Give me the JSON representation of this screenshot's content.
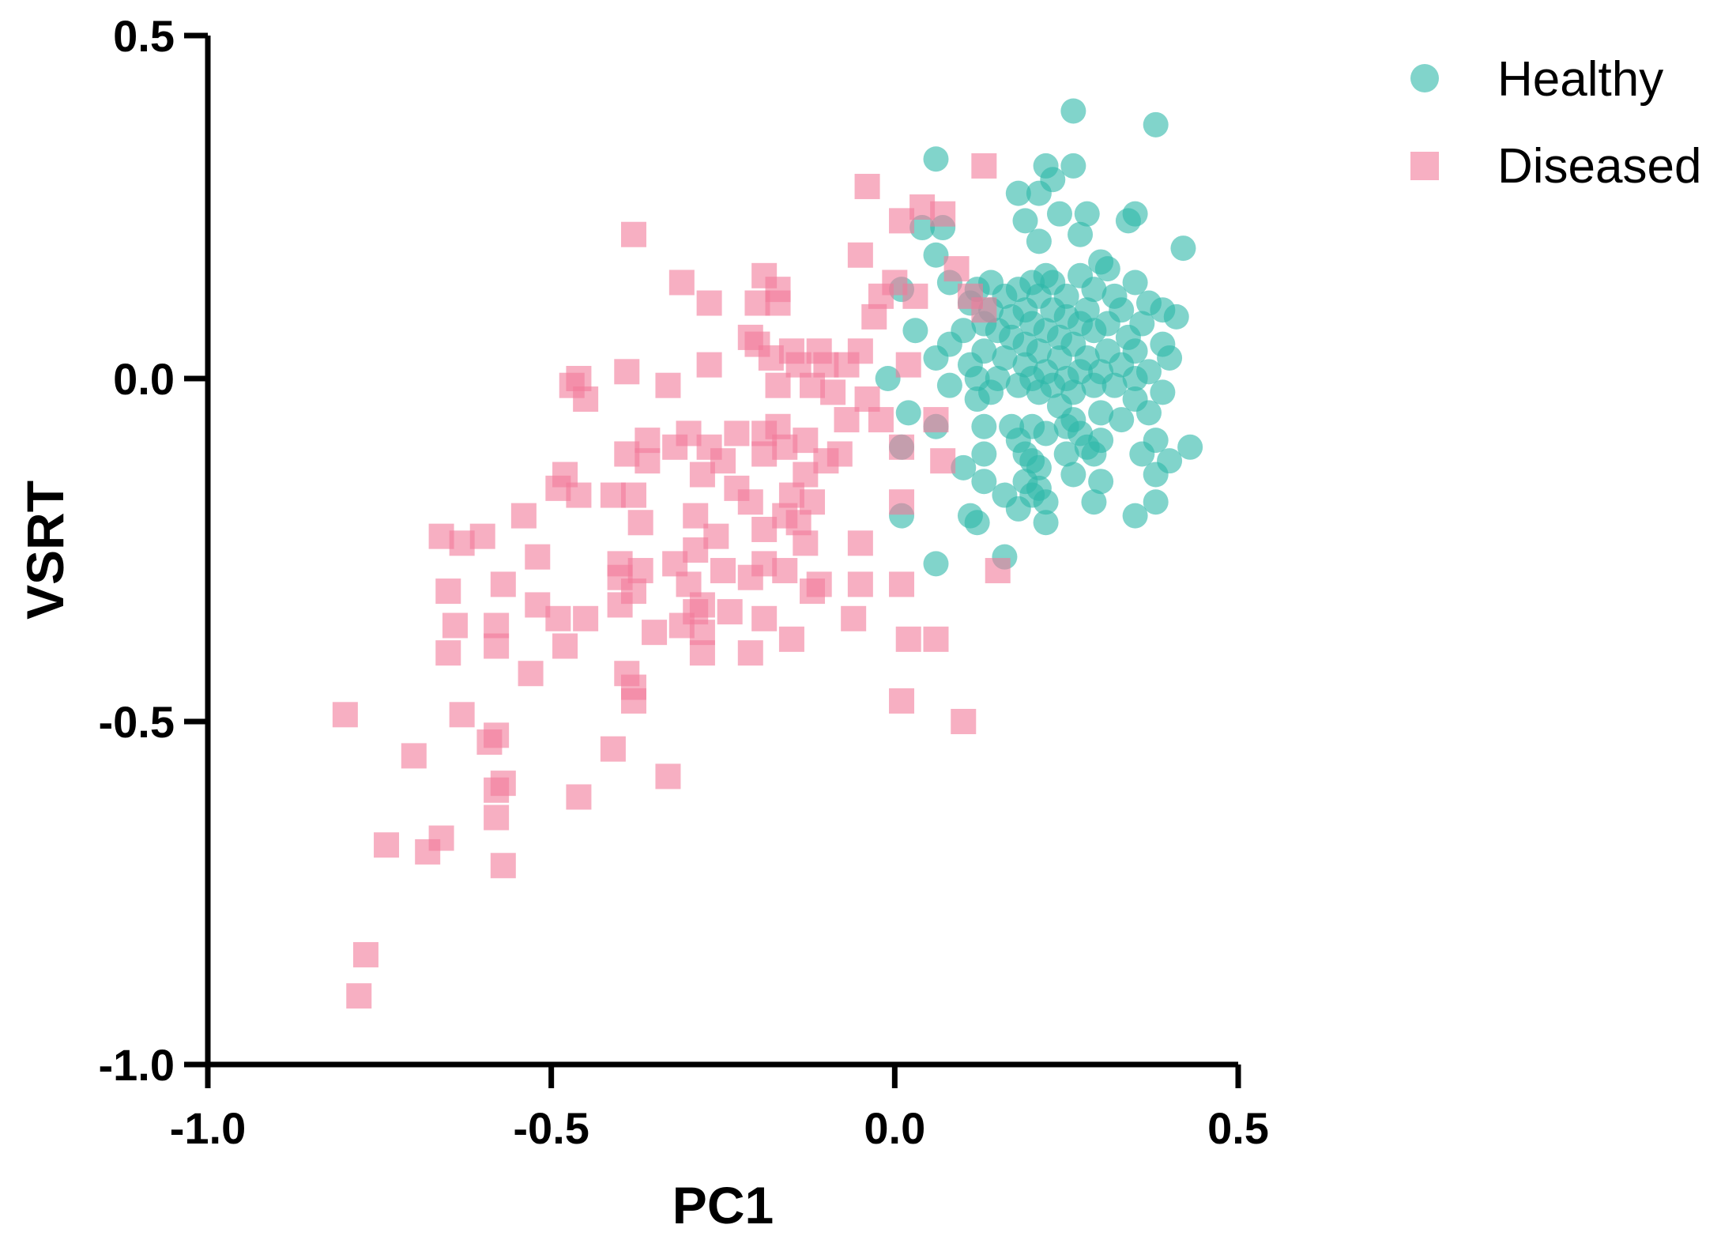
{
  "chart_data": {
    "type": "scatter",
    "xlabel": "PC1",
    "ylabel": "VSRT",
    "xlim": [
      -1.0,
      0.5
    ],
    "ylim": [
      -1.0,
      0.5
    ],
    "xticks": [
      "-1.0",
      "-0.5",
      "0.0",
      "0.5"
    ],
    "yticks": [
      "-1.0",
      "-0.5",
      "0.0",
      "0.5"
    ],
    "grid": false,
    "legend_position": "top-right",
    "series": [
      {
        "name": "Healthy",
        "marker": "circle",
        "color": "#2db8a8",
        "points": [
          [
            0.26,
            0.39
          ],
          [
            0.38,
            0.37
          ],
          [
            0.06,
            0.32
          ],
          [
            0.22,
            0.31
          ],
          [
            0.26,
            0.31
          ],
          [
            0.23,
            0.29
          ],
          [
            0.18,
            0.27
          ],
          [
            0.21,
            0.27
          ],
          [
            0.35,
            0.24
          ],
          [
            0.19,
            0.23
          ],
          [
            0.24,
            0.24
          ],
          [
            0.28,
            0.24
          ],
          [
            0.34,
            0.23
          ],
          [
            0.04,
            0.22
          ],
          [
            0.07,
            0.22
          ],
          [
            0.27,
            0.21
          ],
          [
            0.21,
            0.2
          ],
          [
            0.42,
            0.19
          ],
          [
            0.06,
            0.18
          ],
          [
            0.3,
            0.17
          ],
          [
            0.31,
            0.16
          ],
          [
            0.22,
            0.15
          ],
          [
            0.14,
            0.14
          ],
          [
            0.2,
            0.14
          ],
          [
            0.27,
            0.15
          ],
          [
            0.35,
            0.14
          ],
          [
            0.08,
            0.14
          ],
          [
            0.23,
            0.14
          ],
          [
            0.12,
            0.13
          ],
          [
            0.18,
            0.13
          ],
          [
            0.29,
            0.13
          ],
          [
            0.01,
            0.13
          ],
          [
            0.16,
            0.12
          ],
          [
            0.21,
            0.12
          ],
          [
            0.25,
            0.12
          ],
          [
            0.32,
            0.12
          ],
          [
            0.37,
            0.11
          ],
          [
            0.11,
            0.11
          ],
          [
            0.14,
            0.1
          ],
          [
            0.19,
            0.1
          ],
          [
            0.23,
            0.1
          ],
          [
            0.28,
            0.1
          ],
          [
            0.33,
            0.1
          ],
          [
            0.39,
            0.1
          ],
          [
            0.17,
            0.09
          ],
          [
            0.25,
            0.09
          ],
          [
            0.41,
            0.09
          ],
          [
            0.13,
            0.08
          ],
          [
            0.2,
            0.08
          ],
          [
            0.27,
            0.08
          ],
          [
            0.31,
            0.08
          ],
          [
            0.36,
            0.08
          ],
          [
            0.03,
            0.07
          ],
          [
            0.1,
            0.07
          ],
          [
            0.15,
            0.07
          ],
          [
            0.22,
            0.07
          ],
          [
            0.29,
            0.07
          ],
          [
            0.17,
            0.06
          ],
          [
            0.24,
            0.06
          ],
          [
            0.34,
            0.06
          ],
          [
            0.08,
            0.05
          ],
          [
            0.19,
            0.05
          ],
          [
            0.26,
            0.05
          ],
          [
            0.39,
            0.05
          ],
          [
            0.13,
            0.04
          ],
          [
            0.21,
            0.04
          ],
          [
            0.31,
            0.04
          ],
          [
            0.35,
            0.04
          ],
          [
            0.06,
            0.03
          ],
          [
            0.16,
            0.03
          ],
          [
            0.24,
            0.03
          ],
          [
            0.28,
            0.03
          ],
          [
            0.4,
            0.03
          ],
          [
            0.11,
            0.02
          ],
          [
            0.19,
            0.02
          ],
          [
            0.33,
            0.02
          ],
          [
            0.22,
            0.01
          ],
          [
            0.27,
            0.01
          ],
          [
            0.3,
            0.01
          ],
          [
            0.37,
            0.01
          ],
          [
            0.12,
            0.0
          ],
          [
            0.15,
            0.0
          ],
          [
            0.2,
            0.0
          ],
          [
            0.25,
            0.0
          ],
          [
            0.35,
            0.0
          ],
          [
            -0.01,
            0.0
          ],
          [
            0.23,
            -0.01
          ],
          [
            0.29,
            -0.01
          ],
          [
            0.08,
            -0.01
          ],
          [
            0.18,
            -0.01
          ],
          [
            0.32,
            -0.01
          ],
          [
            0.39,
            -0.02
          ],
          [
            0.14,
            -0.02
          ],
          [
            0.21,
            -0.02
          ],
          [
            0.26,
            -0.02
          ],
          [
            0.35,
            -0.03
          ],
          [
            0.12,
            -0.03
          ],
          [
            0.24,
            -0.04
          ],
          [
            0.3,
            -0.05
          ],
          [
            0.37,
            -0.05
          ],
          [
            0.02,
            -0.05
          ],
          [
            0.26,
            -0.06
          ],
          [
            0.33,
            -0.06
          ],
          [
            0.17,
            -0.07
          ],
          [
            0.2,
            -0.07
          ],
          [
            0.25,
            -0.07
          ],
          [
            0.13,
            -0.07
          ],
          [
            0.06,
            -0.07
          ],
          [
            0.27,
            -0.08
          ],
          [
            0.22,
            -0.08
          ],
          [
            0.3,
            -0.09
          ],
          [
            0.38,
            -0.09
          ],
          [
            0.18,
            -0.09
          ],
          [
            0.43,
            -0.1
          ],
          [
            0.28,
            -0.1
          ],
          [
            0.01,
            -0.1
          ],
          [
            0.29,
            -0.11
          ],
          [
            0.19,
            -0.11
          ],
          [
            0.13,
            -0.11
          ],
          [
            0.25,
            -0.11
          ],
          [
            0.36,
            -0.11
          ],
          [
            0.4,
            -0.12
          ],
          [
            0.2,
            -0.12
          ],
          [
            0.1,
            -0.13
          ],
          [
            0.21,
            -0.13
          ],
          [
            0.38,
            -0.14
          ],
          [
            0.26,
            -0.14
          ],
          [
            0.19,
            -0.15
          ],
          [
            0.13,
            -0.15
          ],
          [
            0.3,
            -0.15
          ],
          [
            0.21,
            -0.16
          ],
          [
            0.16,
            -0.17
          ],
          [
            0.2,
            -0.17
          ],
          [
            0.22,
            -0.18
          ],
          [
            0.38,
            -0.18
          ],
          [
            0.29,
            -0.18
          ],
          [
            0.18,
            -0.19
          ],
          [
            0.35,
            -0.2
          ],
          [
            0.11,
            -0.2
          ],
          [
            0.01,
            -0.2
          ],
          [
            0.12,
            -0.21
          ],
          [
            0.22,
            -0.21
          ],
          [
            0.16,
            -0.26
          ],
          [
            0.06,
            -0.27
          ]
        ]
      },
      {
        "name": "Diseased",
        "marker": "square",
        "color": "#f17a99",
        "points": [
          [
            0.13,
            0.31
          ],
          [
            -0.04,
            0.28
          ],
          [
            0.04,
            0.25
          ],
          [
            0.07,
            0.24
          ],
          [
            0.01,
            0.23
          ],
          [
            -0.38,
            0.21
          ],
          [
            -0.05,
            0.18
          ],
          [
            0.09,
            0.16
          ],
          [
            -0.19,
            0.15
          ],
          [
            0.0,
            0.14
          ],
          [
            -0.31,
            0.14
          ],
          [
            -0.17,
            0.13
          ],
          [
            0.11,
            0.12
          ],
          [
            -0.02,
            0.12
          ],
          [
            0.03,
            0.12
          ],
          [
            -0.27,
            0.11
          ],
          [
            -0.2,
            0.11
          ],
          [
            -0.17,
            0.11
          ],
          [
            0.13,
            0.1
          ],
          [
            -0.03,
            0.09
          ],
          [
            -0.21,
            0.06
          ],
          [
            -0.2,
            0.05
          ],
          [
            -0.15,
            0.04
          ],
          [
            -0.11,
            0.04
          ],
          [
            -0.05,
            0.04
          ],
          [
            -0.18,
            0.03
          ],
          [
            -0.14,
            0.02
          ],
          [
            -0.1,
            0.02
          ],
          [
            -0.07,
            0.02
          ],
          [
            0.02,
            0.02
          ],
          [
            -0.27,
            0.02
          ],
          [
            -0.39,
            0.01
          ],
          [
            -0.46,
            0.0
          ],
          [
            -0.47,
            -0.01
          ],
          [
            -0.17,
            -0.01
          ],
          [
            -0.12,
            -0.01
          ],
          [
            -0.33,
            -0.01
          ],
          [
            -0.45,
            -0.03
          ],
          [
            -0.09,
            -0.02
          ],
          [
            -0.04,
            -0.03
          ],
          [
            -0.07,
            -0.06
          ],
          [
            -0.02,
            -0.06
          ],
          [
            0.06,
            -0.06
          ],
          [
            -0.3,
            -0.08
          ],
          [
            -0.17,
            -0.07
          ],
          [
            -0.19,
            -0.08
          ],
          [
            -0.23,
            -0.08
          ],
          [
            -0.13,
            -0.09
          ],
          [
            -0.36,
            -0.09
          ],
          [
            -0.27,
            -0.1
          ],
          [
            -0.32,
            -0.1
          ],
          [
            -0.16,
            -0.1
          ],
          [
            0.01,
            -0.1
          ],
          [
            -0.08,
            -0.11
          ],
          [
            -0.19,
            -0.11
          ],
          [
            -0.39,
            -0.11
          ],
          [
            -0.36,
            -0.12
          ],
          [
            -0.25,
            -0.12
          ],
          [
            -0.1,
            -0.12
          ],
          [
            0.07,
            -0.12
          ],
          [
            -0.48,
            -0.14
          ],
          [
            -0.28,
            -0.14
          ],
          [
            -0.13,
            -0.14
          ],
          [
            -0.23,
            -0.16
          ],
          [
            -0.49,
            -0.16
          ],
          [
            -0.46,
            -0.17
          ],
          [
            -0.41,
            -0.17
          ],
          [
            -0.38,
            -0.17
          ],
          [
            -0.15,
            -0.17
          ],
          [
            -0.21,
            -0.18
          ],
          [
            -0.12,
            -0.18
          ],
          [
            0.01,
            -0.18
          ],
          [
            -0.54,
            -0.2
          ],
          [
            -0.16,
            -0.2
          ],
          [
            -0.29,
            -0.2
          ],
          [
            -0.37,
            -0.21
          ],
          [
            -0.14,
            -0.21
          ],
          [
            -0.19,
            -0.22
          ],
          [
            -0.26,
            -0.23
          ],
          [
            -0.66,
            -0.23
          ],
          [
            -0.6,
            -0.23
          ],
          [
            -0.63,
            -0.24
          ],
          [
            -0.13,
            -0.24
          ],
          [
            -0.05,
            -0.24
          ],
          [
            -0.29,
            -0.25
          ],
          [
            -0.52,
            -0.26
          ],
          [
            -0.4,
            -0.27
          ],
          [
            -0.32,
            -0.27
          ],
          [
            -0.19,
            -0.27
          ],
          [
            -0.37,
            -0.28
          ],
          [
            -0.25,
            -0.28
          ],
          [
            -0.16,
            -0.28
          ],
          [
            0.15,
            -0.28
          ],
          [
            -0.4,
            -0.29
          ],
          [
            -0.21,
            -0.29
          ],
          [
            -0.57,
            -0.3
          ],
          [
            -0.3,
            -0.3
          ],
          [
            -0.11,
            -0.3
          ],
          [
            -0.05,
            -0.3
          ],
          [
            0.01,
            -0.3
          ],
          [
            -0.65,
            -0.31
          ],
          [
            -0.38,
            -0.31
          ],
          [
            -0.12,
            -0.31
          ],
          [
            -0.52,
            -0.33
          ],
          [
            -0.4,
            -0.33
          ],
          [
            -0.28,
            -0.33
          ],
          [
            -0.24,
            -0.34
          ],
          [
            -0.29,
            -0.34
          ],
          [
            -0.49,
            -0.35
          ],
          [
            -0.19,
            -0.35
          ],
          [
            -0.06,
            -0.35
          ],
          [
            -0.45,
            -0.35
          ],
          [
            -0.64,
            -0.36
          ],
          [
            -0.58,
            -0.36
          ],
          [
            -0.31,
            -0.36
          ],
          [
            -0.35,
            -0.37
          ],
          [
            -0.28,
            -0.37
          ],
          [
            -0.15,
            -0.38
          ],
          [
            0.02,
            -0.38
          ],
          [
            0.06,
            -0.38
          ],
          [
            -0.58,
            -0.39
          ],
          [
            -0.48,
            -0.39
          ],
          [
            -0.65,
            -0.4
          ],
          [
            -0.21,
            -0.4
          ],
          [
            -0.28,
            -0.4
          ],
          [
            -0.53,
            -0.43
          ],
          [
            -0.39,
            -0.43
          ],
          [
            -0.38,
            -0.45
          ],
          [
            -0.38,
            -0.47
          ],
          [
            0.01,
            -0.47
          ],
          [
            -0.63,
            -0.49
          ],
          [
            -0.8,
            -0.49
          ],
          [
            0.1,
            -0.5
          ],
          [
            -0.58,
            -0.52
          ],
          [
            -0.59,
            -0.53
          ],
          [
            -0.41,
            -0.54
          ],
          [
            -0.7,
            -0.55
          ],
          [
            -0.33,
            -0.58
          ],
          [
            -0.57,
            -0.59
          ],
          [
            -0.58,
            -0.6
          ],
          [
            -0.46,
            -0.61
          ],
          [
            -0.58,
            -0.64
          ],
          [
            -0.66,
            -0.67
          ],
          [
            -0.74,
            -0.68
          ],
          [
            -0.68,
            -0.69
          ],
          [
            -0.57,
            -0.71
          ],
          [
            -0.77,
            -0.84
          ],
          [
            -0.78,
            -0.9
          ]
        ]
      }
    ]
  }
}
